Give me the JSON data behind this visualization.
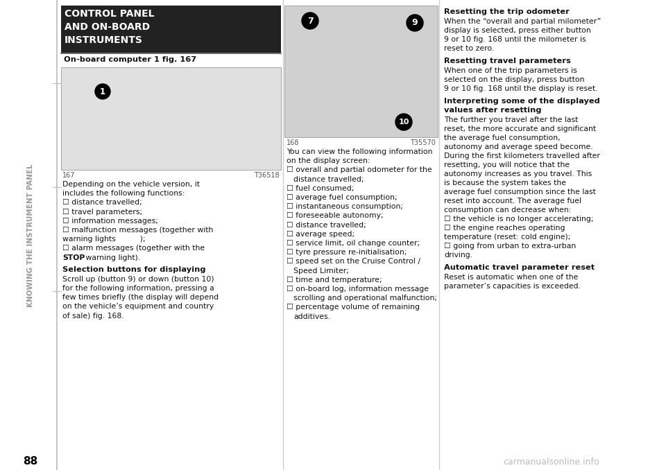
{
  "page_number": "88",
  "watermark": "carmanualsonline.info",
  "sidebar_text": "KNOWING THE INSTRUMENT PANEL",
  "title_line1": "CONTROL PANEL",
  "title_line2": "AND ON-BOARD",
  "title_line3": "INSTRUMENTS",
  "subtitle": "On-board computer 1 fig. 167",
  "fig167_label": "167",
  "fig167_code": "T36518",
  "fig168_label": "168",
  "fig168_code": "T35570",
  "left_body_lines": [
    [
      "Depending on the vehicle version, it",
      "normal"
    ],
    [
      "includes the following functions:",
      "normal"
    ],
    [
      "☐ distance travelled;",
      "normal"
    ],
    [
      "☐ travel parameters;",
      "normal"
    ],
    [
      "☐ information messages;",
      "normal"
    ],
    [
      "☐ malfunction messages (together with",
      "normal"
    ],
    [
      "warning lights         );",
      "normal"
    ],
    [
      "☐ alarm messages (together with the",
      "normal"
    ],
    [
      "STOP_warning light).",
      "stop"
    ]
  ],
  "selection_header": "Selection buttons for displaying",
  "selection_body_lines": [
    "Scroll up (button 9) or down (button 10)",
    "for the following information, pressing a",
    "few times briefly (the display will depend",
    "on the vehicle’s equipment and country",
    "of sale) fig. 168."
  ],
  "middle_intro_lines": [
    "You can view the following information",
    "on the display screen:"
  ],
  "middle_list": [
    "☐ overall and partial odometer for the",
    "distance travelled;",
    "☐ fuel consumed;",
    "☐ average fuel consumption;",
    "☐ instantaneous consumption;",
    "☐ foreseeable autonomy;",
    "☐ distance travelled;",
    "☐ average speed;",
    "☐ service limit, oil change counter;",
    "☐ tyre pressure re-initialisation;",
    "☐ speed set on the Cruise Control /",
    "Speed Limiter;",
    "☐ time and temperature;",
    "☐ on-board log, information message",
    "scrolling and operational malfunction;",
    "☐ percentage volume of remaining",
    "additives."
  ],
  "right_sections": [
    {
      "header": "Resetting the trip odometer",
      "body_lines": [
        "When the “overall and partial milometer”",
        "display is selected, press either button",
        "9 or 10 fig. 168 until the milometer is",
        "reset to zero."
      ]
    },
    {
      "header": "Resetting travel parameters",
      "body_lines": [
        "When one of the trip parameters is",
        "selected on the display, press button",
        "9 or 10 fig. 168 until the display is reset."
      ]
    },
    {
      "header1": "Interpreting some of the displayed",
      "header2": "values after resetting",
      "body_lines": [
        "The further you travel after the last",
        "reset, the more accurate and significant",
        "the average fuel consumption,",
        "autonomy and average speed become.",
        "During the first kilometers travelled after",
        "resetting, you will notice that the",
        "autonomy increases as you travel. This",
        "is because the system takes the",
        "average fuel consumption since the last",
        "reset into account. The average fuel",
        "consumption can decrease when:",
        "☐ the vehicle is no longer accelerating;",
        "☐ the engine reaches operating",
        "temperature (reset: cold engine);",
        "☐ going from urban to extra-urban",
        "driving."
      ]
    },
    {
      "header": "Automatic travel parameter reset",
      "body_lines": [
        "Reset is automatic when one of the",
        "parameter’s capacities is exceeded."
      ]
    }
  ],
  "bg_color": "#ffffff",
  "title_bg_color": "#222222",
  "title_text_color": "#ffffff",
  "sidebar_color": "#999999",
  "text_color": "#111111",
  "line_color": "#bbbbbb"
}
